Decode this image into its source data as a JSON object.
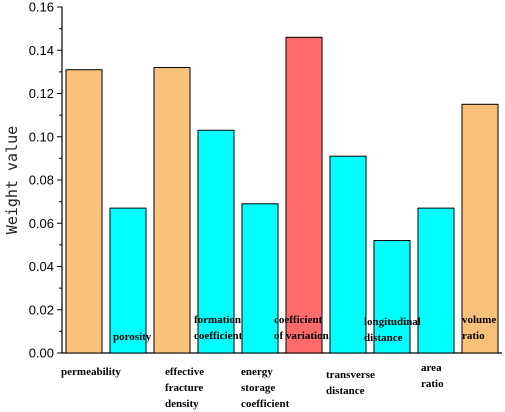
{
  "chart_data": {
    "type": "bar",
    "title": "",
    "xlabel": "",
    "ylabel": "Weight value",
    "ylim": [
      0,
      0.16
    ],
    "yticks": [
      "0.00",
      "0.02",
      "0.04",
      "0.06",
      "0.08",
      "0.10",
      "0.12",
      "0.14",
      "0.16"
    ],
    "grid": false,
    "categories": [
      "permeability",
      "porosity",
      "effective fracture density",
      "formation coefficient",
      "energy storage coefficient",
      "coefficient of variation",
      "transverse distance",
      "longitudinal distance",
      "area ratio",
      "volume ratio"
    ],
    "label_lines": [
      [
        "permeability"
      ],
      [
        "porosity"
      ],
      [
        "effective",
        "fracture",
        "density"
      ],
      [
        "formation",
        "coefficient"
      ],
      [
        "energy",
        "storage",
        "coefficient"
      ],
      [
        "coefficient",
        "of variation"
      ],
      [
        "transverse",
        "distance"
      ],
      [
        "longitudinal",
        "distance"
      ],
      [
        "area",
        "ratio"
      ],
      [
        "volume",
        "ratio"
      ]
    ],
    "values": [
      0.131,
      0.067,
      0.132,
      0.103,
      0.069,
      0.146,
      0.091,
      0.052,
      0.067,
      0.115
    ],
    "bar_colors": [
      "#f9c17a",
      "#00ffff",
      "#f9c17a",
      "#00ffff",
      "#00ffff",
      "#ff6b6b",
      "#00ffff",
      "#00ffff",
      "#00ffff",
      "#f9c17a"
    ]
  }
}
